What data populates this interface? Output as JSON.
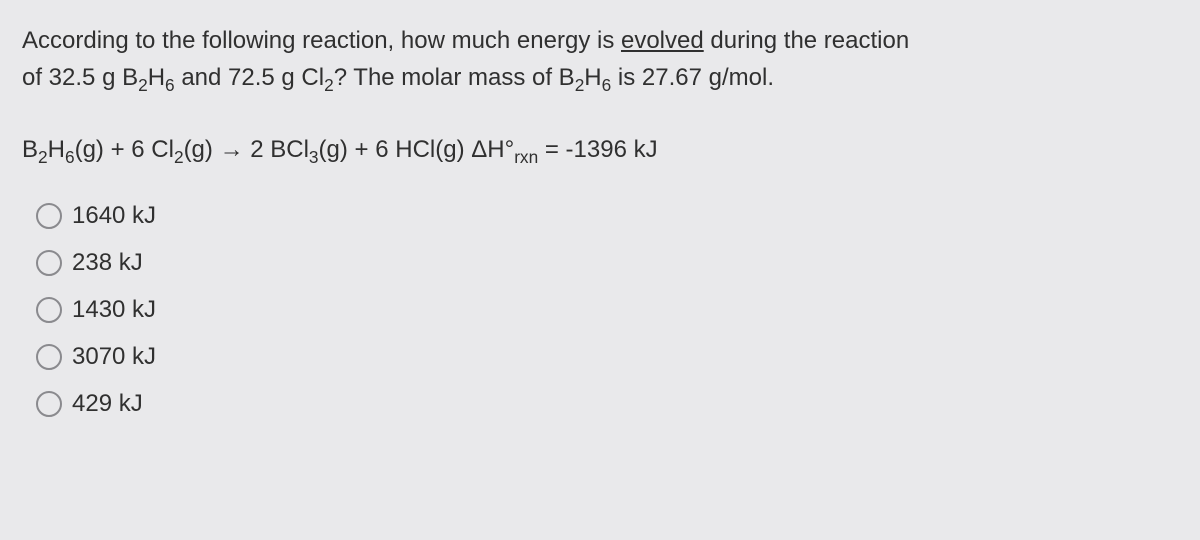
{
  "question": {
    "line1_pre": "According to the following reaction, how much energy is ",
    "line1_underlined": "evolved",
    "line1_post": " during the reaction",
    "line2_a": "of 32.5 g B",
    "line2_b": "H",
    "line2_c": " and 72.5 g Cl",
    "line2_d": "? The molar mass of B",
    "line2_e": "H",
    "line2_f": " is 27.67 g/mol.",
    "sub2": "2",
    "sub6": "6"
  },
  "equation": {
    "p1": "B",
    "p2": "H",
    "p3": "(g) + 6 Cl",
    "p4": "(g) → 2 BCl",
    "p5": "(g) + 6 HCl(g) ΔH°",
    "p6": " = -1396 kJ",
    "sub2": "2",
    "sub3": "3",
    "sub6": "6",
    "rxn": "rxn"
  },
  "options": [
    {
      "label": "1640 kJ"
    },
    {
      "label": "238 kJ"
    },
    {
      "label": "1430 kJ"
    },
    {
      "label": "3070 kJ"
    },
    {
      "label": "429 kJ"
    }
  ],
  "style": {
    "background_color": "#e9e9eb",
    "text_color": "#303030",
    "radio_border_color": "#8a8a8e",
    "font_size_pt": 18,
    "font_family": "Arial"
  }
}
